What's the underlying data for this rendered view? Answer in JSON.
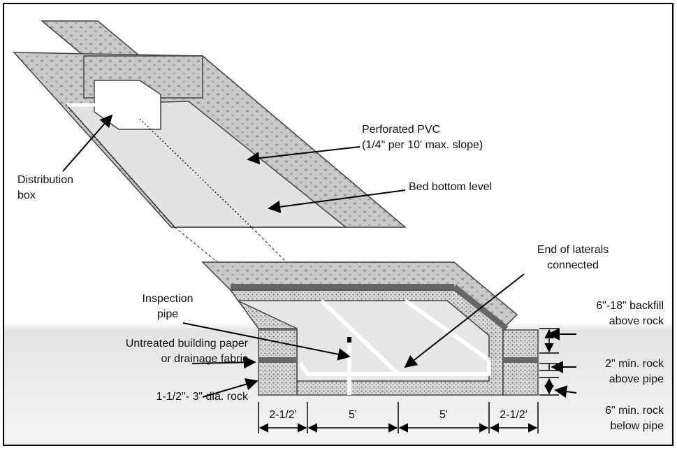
{
  "labels": [
    {
      "lines": [
        "Perforated PVC",
        "(1/4\" per 10' max. slope)"
      ]
    },
    {
      "lines": [
        "Distribution",
        "box"
      ]
    },
    {
      "lines": [
        "Bed bottom level"
      ]
    },
    {
      "lines": [
        "End of laterals",
        "connected"
      ]
    },
    {
      "lines": [
        "Inspection",
        "pipe"
      ]
    },
    {
      "lines": [
        "Untreated building paper",
        "or drainage fabric"
      ]
    },
    {
      "lines": [
        "1-1/2\"- 3\" dia. rock"
      ]
    },
    {
      "lines": [
        "6\"-18\" backfill",
        "above rock"
      ]
    },
    {
      "lines": [
        "2\" min. rock",
        "above pipe"
      ]
    },
    {
      "lines": [
        "6\" min. rock",
        "below pipe"
      ]
    }
  ],
  "dimensions": [
    "2-1/2'",
    "5'",
    "5'",
    "2-1/2'"
  ]
}
